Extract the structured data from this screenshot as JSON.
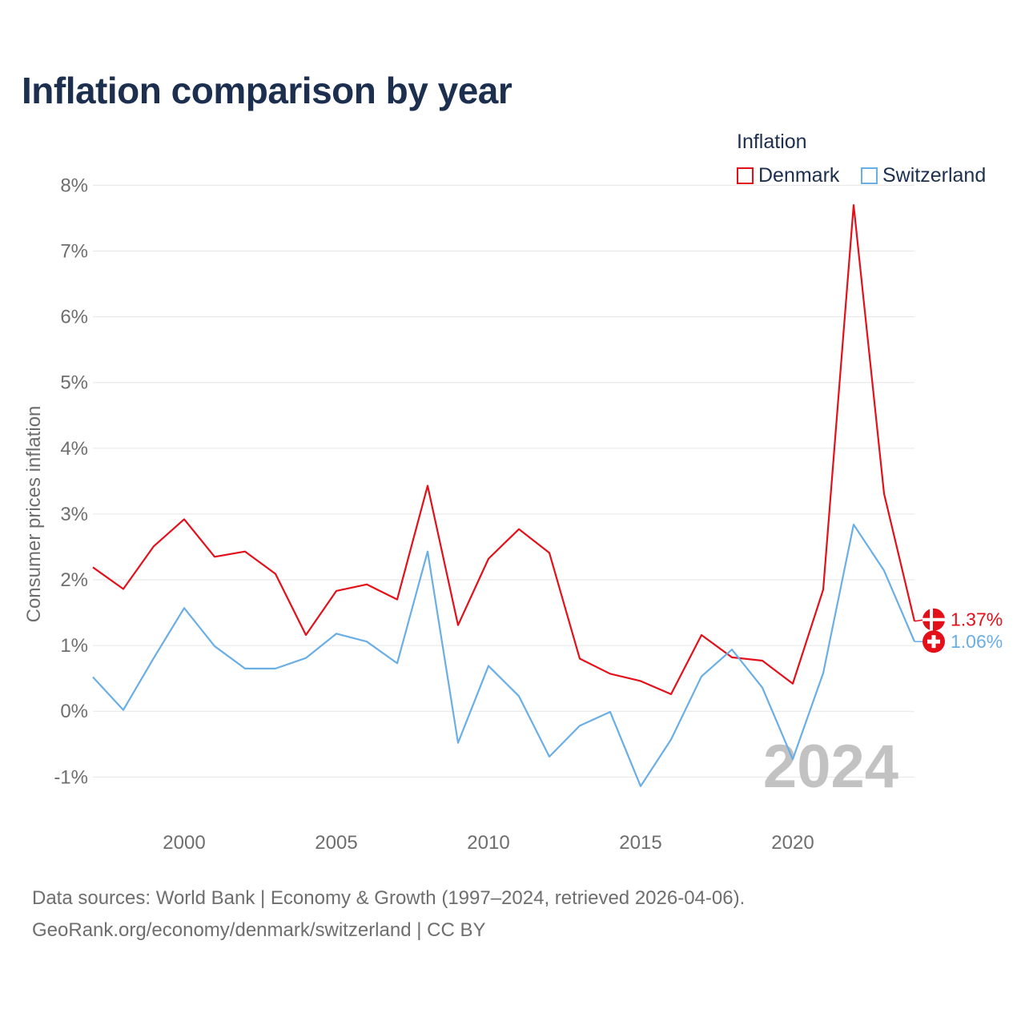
{
  "title": "Inflation comparison by year",
  "legend": {
    "title": "Inflation",
    "items": [
      {
        "label": "Denmark",
        "color": "#e3101a"
      },
      {
        "label": "Switzerland",
        "color": "#6aaee6"
      }
    ]
  },
  "footer": {
    "line1": "Data sources: World Bank | Economy & Growth (1997–2024, retrieved 2026-04-06).",
    "line2": "GeoRank.org/economy/denmark/switzerland | CC BY"
  },
  "chart_data": {
    "type": "line",
    "title": "Inflation comparison by year",
    "xlabel": "",
    "ylabel": "Consumer prices inflation",
    "xlim": [
      1997,
      2024
    ],
    "ylim": [
      -1.8,
      8.2
    ],
    "x_ticks": [
      2000,
      2005,
      2010,
      2015,
      2020
    ],
    "y_ticks": [
      -1,
      0,
      1,
      2,
      3,
      4,
      5,
      6,
      7,
      8
    ],
    "y_tick_labels": [
      "-1%",
      "0%",
      "1%",
      "2%",
      "3%",
      "4%",
      "5%",
      "6%",
      "7%",
      "8%"
    ],
    "grid": true,
    "watermark": "2024",
    "x": [
      1997,
      1998,
      1999,
      2000,
      2001,
      2002,
      2003,
      2004,
      2005,
      2006,
      2007,
      2008,
      2009,
      2010,
      2011,
      2012,
      2013,
      2014,
      2015,
      2016,
      2017,
      2018,
      2019,
      2020,
      2021,
      2022,
      2023,
      2024
    ],
    "series": [
      {
        "name": "Denmark",
        "color": "#e3101a",
        "end_label": "1.37%",
        "values": [
          2.19,
          1.86,
          2.51,
          2.92,
          2.35,
          2.43,
          2.09,
          1.16,
          1.83,
          1.93,
          1.7,
          3.43,
          1.31,
          2.32,
          2.77,
          2.41,
          0.8,
          0.57,
          0.46,
          0.26,
          1.16,
          0.82,
          0.77,
          0.42,
          1.85,
          7.7,
          3.31,
          1.37
        ]
      },
      {
        "name": "Switzerland",
        "color": "#6aaee6",
        "end_label": "1.06%",
        "values": [
          0.52,
          0.02,
          0.81,
          1.57,
          0.99,
          0.65,
          0.65,
          0.81,
          1.18,
          1.06,
          0.73,
          2.43,
          -0.48,
          0.69,
          0.23,
          -0.69,
          -0.22,
          -0.01,
          -1.14,
          -0.43,
          0.53,
          0.94,
          0.36,
          -0.73,
          0.58,
          2.84,
          2.14,
          1.06
        ]
      }
    ]
  }
}
